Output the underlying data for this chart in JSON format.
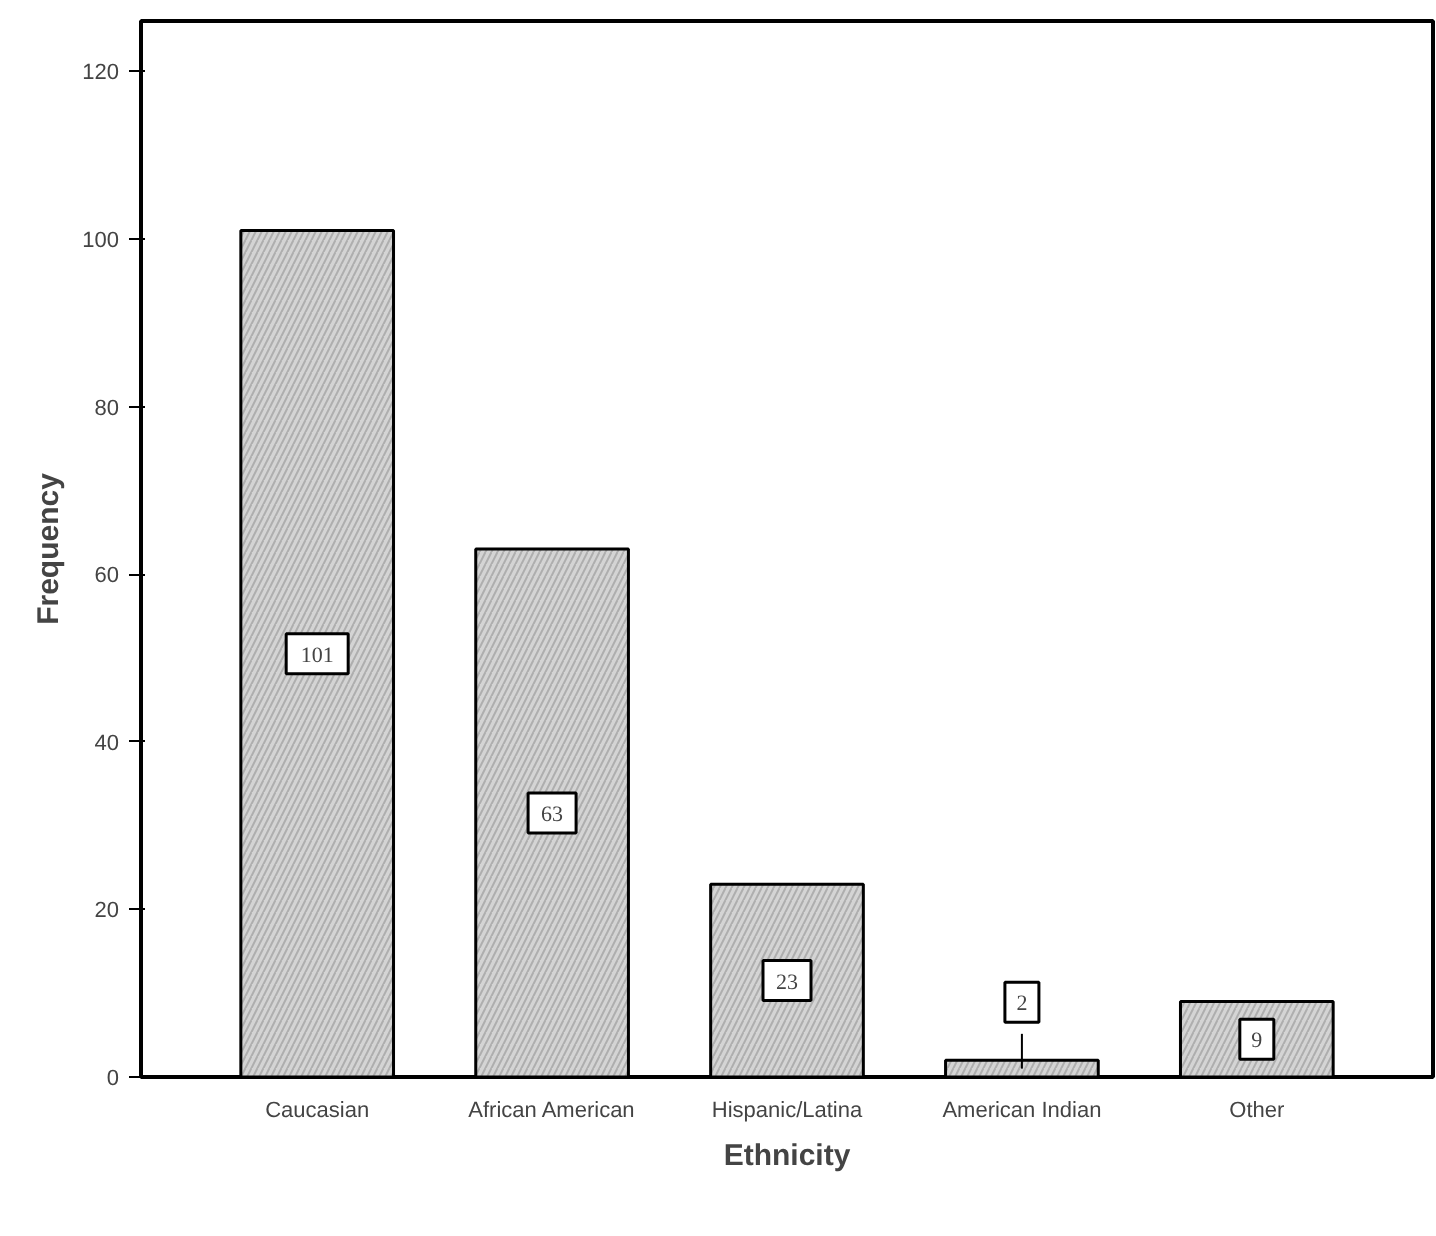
{
  "chart_data": {
    "type": "bar",
    "xlabel": "Ethnicity",
    "ylabel": "Frequency",
    "categories": [
      "Caucasian",
      "African American",
      "Hispanic/Latina",
      "American Indian",
      "Other"
    ],
    "values": [
      101,
      63,
      23,
      2,
      9
    ],
    "color": "#d4d4d4",
    "ylim": [
      0,
      126
    ],
    "yticks": [
      0,
      20,
      40,
      60,
      80,
      100,
      120
    ],
    "grid": false,
    "data_labels": true
  }
}
